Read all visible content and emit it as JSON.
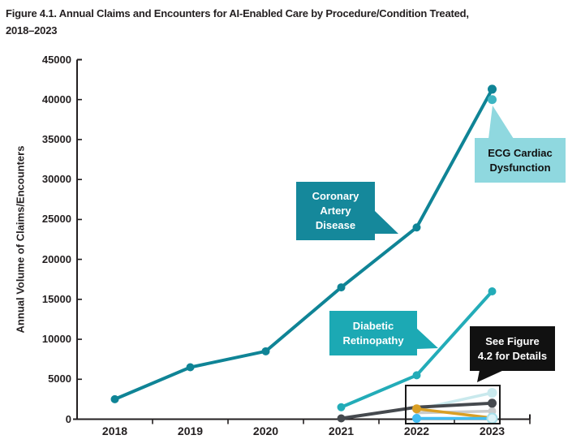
{
  "figure": {
    "title_line1": "Figure 4.1. Annual Claims and Encounters for AI-Enabled Care by Procedure/Condition Treated,",
    "title_line2": "2018–2023"
  },
  "chart_data": {
    "type": "line",
    "title": "Figure 4.1. Annual Claims and Encounters for AI-Enabled Care by Procedure/Condition Treated, 2018–2023",
    "xlabel": "",
    "ylabel": "Annual Volume of Claims/Encounters",
    "x": [
      "2018",
      "2019",
      "2020",
      "2021",
      "2022",
      "2023"
    ],
    "ylim": [
      0,
      45000
    ],
    "ytick_step": 5000,
    "grid": false,
    "legend_position": "none (labels via callout boxes)",
    "series": [
      {
        "name": "Detail series pale cyan (see Figure 4.2)",
        "color": "#c9e9ed",
        "width": 3.5,
        "points": {
          "2022": 1200,
          "2023": 3300
        },
        "dots": {
          "2022": 5,
          "2023": 6
        }
      },
      {
        "name": "Detail series light gray (see Figure 4.2)",
        "color": "#c9cbcc",
        "width": 3.5,
        "points": {
          "2022": 800,
          "2023": 1000
        },
        "dots": {
          "2023": 5
        }
      },
      {
        "name": "Detail series dark gray (see Figure 4.2)",
        "color": "#45494e",
        "width": 4,
        "points": {
          "2021": 100,
          "2022": 1500,
          "2023": 2000
        },
        "dots": {
          "2021": 5,
          "2023": 5.5
        }
      },
      {
        "name": "Detail series orange (see Figure 4.2)",
        "color": "#d99f24",
        "width": 3.5,
        "points": {
          "2022": 1300,
          "2023": 150
        },
        "dots": {
          "2022": 5.5,
          "2023": 4
        }
      },
      {
        "name": "Detail series bright blue (see Figure 4.2)",
        "color": "#41bdf1",
        "width": 3.5,
        "points": {
          "2022": 100,
          "2023": 100
        },
        "dots": {
          "2022": 5.5,
          "2023": 5.5
        }
      },
      {
        "name": "Detail series pale ring (see Figure 4.2)",
        "color": "#a7dfe9",
        "fill": "#dbf2f7",
        "width": 2,
        "ring": true,
        "points": {
          "2023": 100
        },
        "dots": {
          "2023": 6
        }
      },
      {
        "name": "Diabetic Retinopathy",
        "color": "#23acb8",
        "width": 4,
        "points": {
          "2021": 1500,
          "2022": 5500,
          "2023": 16000
        },
        "dots": {
          "2021": 5,
          "2022": 5,
          "2023": 5
        }
      },
      {
        "name": "Coronary Artery Disease",
        "color": "#0f8496",
        "width": 4,
        "points": {
          "2018": 2500,
          "2019": 6500,
          "2020": 8500,
          "2021": 16500,
          "2022": 24000,
          "2023": 41300
        },
        "dots": {
          "2018": 5,
          "2019": 5,
          "2020": 5,
          "2021": 5,
          "2022": 5,
          "2023": 5.5
        }
      },
      {
        "name": "ECG Cardiac Dysfunction",
        "color": "#3eb5c2",
        "width": 4,
        "points": {
          "2023": 40000
        },
        "dots": {
          "2023": 5.5
        }
      }
    ]
  },
  "annotations": {
    "coronary": {
      "line1": "Coronary",
      "line2": "Artery",
      "line3": "Disease",
      "bg": "#15889b",
      "fg": "#ffffff"
    },
    "ecg": {
      "line1": "ECG Cardiac",
      "line2": "Dysfunction",
      "bg": "#8fd8df",
      "fg": "#101010"
    },
    "diabetic": {
      "line1": "Diabetic",
      "line2": "Retinopathy",
      "bg": "#1ca9b4",
      "fg": "#ffffff"
    },
    "see_figure": {
      "line1": "See Figure",
      "line2": "4.2 for Details",
      "bg": "#111111",
      "fg": "#ffffff"
    }
  },
  "colors": {
    "axis": "#231f20",
    "text": "#231f20",
    "detail_box_border": "#1a1a1a"
  }
}
